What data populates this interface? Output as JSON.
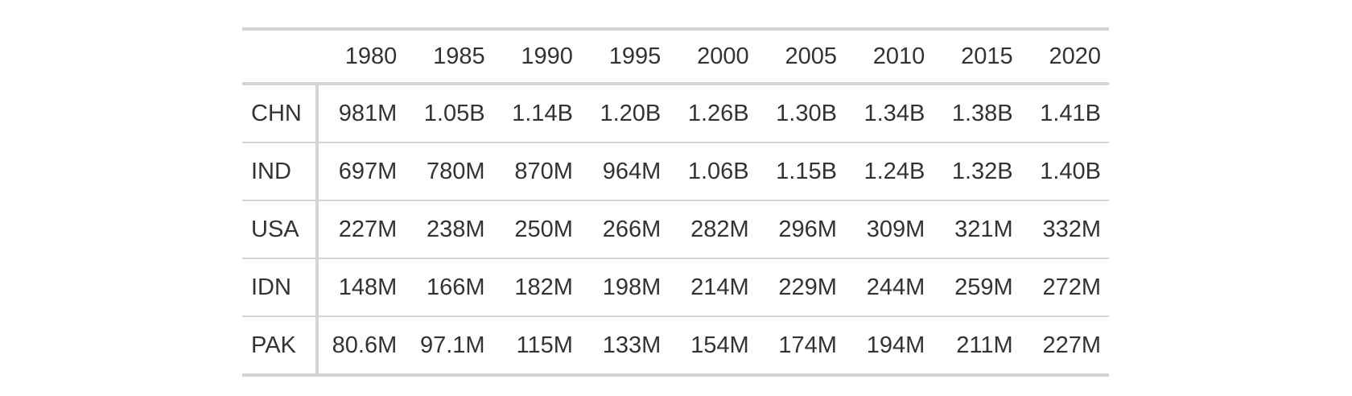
{
  "chart_data": {
    "type": "table",
    "columns": [
      "",
      "1980",
      "1985",
      "1990",
      "1995",
      "2000",
      "2005",
      "2010",
      "2015",
      "2020"
    ],
    "rows": [
      {
        "label": "CHN",
        "values": [
          "981M",
          "1.05B",
          "1.14B",
          "1.20B",
          "1.26B",
          "1.30B",
          "1.34B",
          "1.38B",
          "1.41B"
        ]
      },
      {
        "label": "IND",
        "values": [
          "697M",
          "780M",
          "870M",
          "964M",
          "1.06B",
          "1.15B",
          "1.24B",
          "1.32B",
          "1.40B"
        ]
      },
      {
        "label": "USA",
        "values": [
          "227M",
          "238M",
          "250M",
          "266M",
          "282M",
          "296M",
          "309M",
          "321M",
          "332M"
        ]
      },
      {
        "label": "IDN",
        "values": [
          "148M",
          "166M",
          "182M",
          "198M",
          "214M",
          "229M",
          "244M",
          "259M",
          "272M"
        ]
      },
      {
        "label": "PAK",
        "values": [
          "80.6M",
          "97.1M",
          "115M",
          "133M",
          "154M",
          "174M",
          "194M",
          "211M",
          "227M"
        ]
      }
    ]
  }
}
